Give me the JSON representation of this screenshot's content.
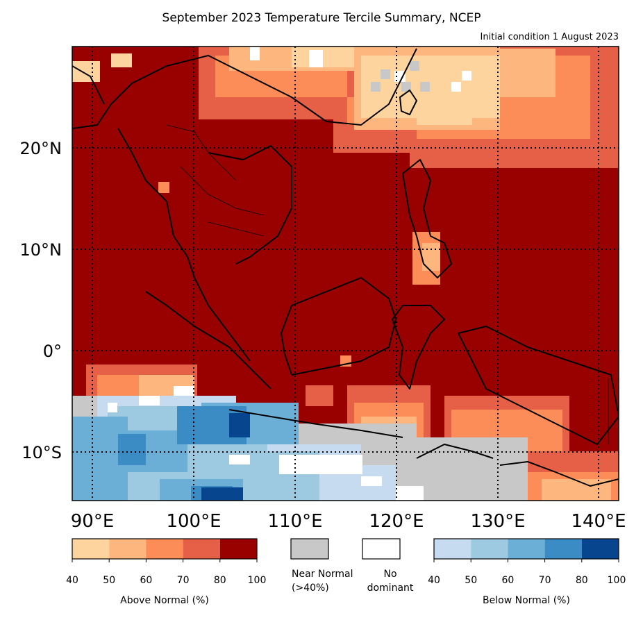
{
  "title": "September 2023 Temperature Tercile Summary, NCEP",
  "subtitle": "Initial condition 1 August 2023",
  "map": {
    "lon_range": [
      87.5,
      141.5
    ],
    "lat_range": [
      -14.5,
      30
    ],
    "lat_labels": [
      "20°N",
      "10°N",
      "0°",
      "10°S"
    ],
    "lon_labels": [
      "90°E",
      "100°E",
      "110°E",
      "120°E",
      "130°E",
      "140°E"
    ]
  },
  "legend": {
    "above_label": "Above Normal (%)",
    "above_ticks": [
      "40",
      "50",
      "60",
      "70",
      "80",
      "100"
    ],
    "above_colors": [
      "#fdd49e",
      "#fcb67e",
      "#fc8d59",
      "#e65f47",
      "#990000"
    ],
    "near_label_line1": "Near Normal",
    "near_label_line2": "(>40%)",
    "near_color": "#c8c8c8",
    "nodom_label_line1": "No",
    "nodom_label_line2": "dominant",
    "nodom_color": "#ffffff",
    "below_label": "Below Normal (%)",
    "below_ticks": [
      "40",
      "50",
      "60",
      "70",
      "80",
      "100"
    ],
    "below_colors": [
      "#c6dbef",
      "#9ecae1",
      "#6baed6",
      "#3b8cc4",
      "#08458f"
    ]
  }
}
